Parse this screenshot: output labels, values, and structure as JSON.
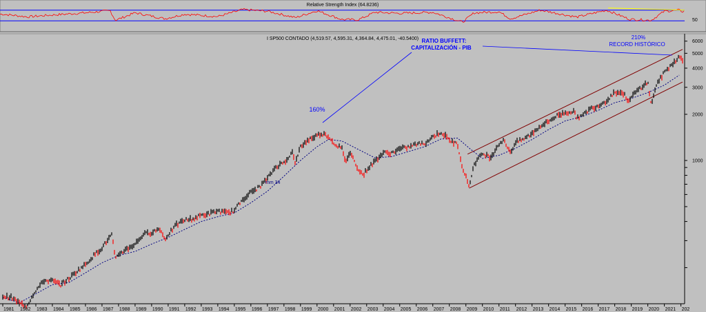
{
  "rsi_panel": {
    "title": "Relative Strength Index (64.8236)",
    "axis_label": "50",
    "upper_level": 70,
    "lower_level": 30,
    "current": 64.8236
  },
  "price_panel": {
    "title": "I SP500 CONTADO (4,519.57, 4,595.31, 4,364.84, 4,475.01, -40.5400)",
    "y_ticks": [
      "6000",
      "5000",
      "4000",
      "3000",
      "2000",
      "1000"
    ],
    "x_ticks": [
      "1981",
      "1982",
      "1983",
      "1984",
      "1985",
      "1986",
      "1987",
      "1988",
      "1989",
      "1990",
      "1991",
      "1992",
      "1993",
      "1994",
      "1995",
      "1996",
      "1997",
      "1998",
      "1999",
      "2000",
      "2001",
      "2002",
      "2003",
      "2004",
      "2005",
      "2006",
      "2007",
      "2008",
      "2009",
      "2010",
      "2011",
      "2012",
      "2013",
      "2014",
      "2015",
      "2016",
      "2017",
      "2018",
      "2019",
      "2020",
      "2021",
      "202"
    ]
  },
  "annotations": {
    "ratio_line1": "RATIO BUFFETT:",
    "ratio_line2": "CAPITALIZACIÓN - PIB",
    "pct_2000": "160%",
    "pct_2021": "210%",
    "record": "RECORD HISTÓRICO",
    "ma_label": "mm 34"
  },
  "colors": {
    "background": "#c0c0c0",
    "rsi_line": "#ff0000",
    "rsi_levels": "#0000ff",
    "rsi_trend": "#ffff00",
    "up_bar": "#000000",
    "down_bar": "#ff0000",
    "moving_average": "#000080",
    "channel": "#800000",
    "annotation": "#0000ff"
  },
  "chart_data": {
    "type": "line",
    "title": "I SP500 CONTADO (4,519.57, 4,595.31, 4,364.84, 4,475.01, -40.5400)",
    "y_scale": "log",
    "ylim": [
      120,
      6500
    ],
    "xlim": [
      1981.0,
      2022.1
    ],
    "series": [
      {
        "name": "price",
        "points": [
          [
            1981.0,
            130
          ],
          [
            1981.5,
            128
          ],
          [
            1982.0,
            118
          ],
          [
            1982.4,
            112
          ],
          [
            1982.6,
            120
          ],
          [
            1982.9,
            138
          ],
          [
            1983.5,
            165
          ],
          [
            1984.0,
            164
          ],
          [
            1984.5,
            155
          ],
          [
            1985.0,
            170
          ],
          [
            1985.5,
            190
          ],
          [
            1986.0,
            210
          ],
          [
            1986.5,
            240
          ],
          [
            1987.0,
            270
          ],
          [
            1987.6,
            330
          ],
          [
            1987.8,
            225
          ],
          [
            1988.0,
            245
          ],
          [
            1988.5,
            265
          ],
          [
            1989.0,
            285
          ],
          [
            1989.5,
            330
          ],
          [
            1990.0,
            340
          ],
          [
            1990.5,
            360
          ],
          [
            1990.8,
            305
          ],
          [
            1991.0,
            330
          ],
          [
            1991.5,
            380
          ],
          [
            1992.0,
            410
          ],
          [
            1992.5,
            415
          ],
          [
            1993.0,
            440
          ],
          [
            1993.5,
            450
          ],
          [
            1994.0,
            470
          ],
          [
            1994.5,
            455
          ],
          [
            1995.0,
            470
          ],
          [
            1995.5,
            560
          ],
          [
            1996.0,
            620
          ],
          [
            1996.5,
            670
          ],
          [
            1997.0,
            760
          ],
          [
            1997.5,
            910
          ],
          [
            1998.0,
            970
          ],
          [
            1998.5,
            1130
          ],
          [
            1998.7,
            960
          ],
          [
            1999.0,
            1230
          ],
          [
            1999.5,
            1370
          ],
          [
            2000.0,
            1460
          ],
          [
            2000.3,
            1500
          ],
          [
            2000.7,
            1440
          ],
          [
            2001.0,
            1300
          ],
          [
            2001.5,
            1200
          ],
          [
            2001.7,
            980
          ],
          [
            2002.0,
            1130
          ],
          [
            2002.5,
            880
          ],
          [
            2002.8,
            800
          ],
          [
            2003.0,
            870
          ],
          [
            2003.5,
            990
          ],
          [
            2004.0,
            1120
          ],
          [
            2004.5,
            1120
          ],
          [
            2005.0,
            1190
          ],
          [
            2005.5,
            1220
          ],
          [
            2006.0,
            1280
          ],
          [
            2006.5,
            1290
          ],
          [
            2007.0,
            1430
          ],
          [
            2007.5,
            1530
          ],
          [
            2008.0,
            1360
          ],
          [
            2008.5,
            1270
          ],
          [
            2008.8,
            900
          ],
          [
            2009.2,
            680
          ],
          [
            2009.5,
            950
          ],
          [
            2010.0,
            1110
          ],
          [
            2010.5,
            1050
          ],
          [
            2011.0,
            1290
          ],
          [
            2011.3,
            1350
          ],
          [
            2011.7,
            1130
          ],
          [
            2012.0,
            1310
          ],
          [
            2012.5,
            1380
          ],
          [
            2013.0,
            1500
          ],
          [
            2013.5,
            1680
          ],
          [
            2014.0,
            1800
          ],
          [
            2014.5,
            1960
          ],
          [
            2015.0,
            2050
          ],
          [
            2015.5,
            2090
          ],
          [
            2015.7,
            1920
          ],
          [
            2016.0,
            1940
          ],
          [
            2016.5,
            2170
          ],
          [
            2017.0,
            2280
          ],
          [
            2017.5,
            2450
          ],
          [
            2018.0,
            2800
          ],
          [
            2018.5,
            2750
          ],
          [
            2018.9,
            2400
          ],
          [
            2019.0,
            2600
          ],
          [
            2019.5,
            2950
          ],
          [
            2020.0,
            3250
          ],
          [
            2020.2,
            2300
          ],
          [
            2020.5,
            3100
          ],
          [
            2021.0,
            3750
          ],
          [
            2021.5,
            4300
          ],
          [
            2021.9,
            4750
          ],
          [
            2022.1,
            4475
          ]
        ]
      },
      {
        "name": "mm 34",
        "points": [
          [
            1981.0,
            128
          ],
          [
            1982.0,
            118
          ],
          [
            1983.0,
            135
          ],
          [
            1984.0,
            155
          ],
          [
            1985.0,
            160
          ],
          [
            1986.0,
            185
          ],
          [
            1987.0,
            215
          ],
          [
            1988.0,
            240
          ],
          [
            1989.0,
            255
          ],
          [
            1990.0,
            285
          ],
          [
            1991.0,
            315
          ],
          [
            1992.0,
            355
          ],
          [
            1993.0,
            400
          ],
          [
            1994.0,
            430
          ],
          [
            1995.0,
            455
          ],
          [
            1996.0,
            530
          ],
          [
            1997.0,
            630
          ],
          [
            1998.0,
            790
          ],
          [
            1999.0,
            1000
          ],
          [
            2000.0,
            1230
          ],
          [
            2000.7,
            1370
          ],
          [
            2001.5,
            1340
          ],
          [
            2002.5,
            1180
          ],
          [
            2003.5,
            1040
          ],
          [
            2004.5,
            1060
          ],
          [
            2005.5,
            1140
          ],
          [
            2006.5,
            1230
          ],
          [
            2007.5,
            1380
          ],
          [
            2008.5,
            1400
          ],
          [
            2009.3,
            1180
          ],
          [
            2010.0,
            1030
          ],
          [
            2011.0,
            1080
          ],
          [
            2012.0,
            1200
          ],
          [
            2013.0,
            1370
          ],
          [
            2014.0,
            1590
          ],
          [
            2015.0,
            1810
          ],
          [
            2016.0,
            1930
          ],
          [
            2017.0,
            2120
          ],
          [
            2018.0,
            2380
          ],
          [
            2019.0,
            2540
          ],
          [
            2020.0,
            2770
          ],
          [
            2021.0,
            3100
          ],
          [
            2021.9,
            3600
          ]
        ]
      }
    ],
    "channel": {
      "upper": [
        [
          2009.1,
          1100
        ],
        [
          2022.1,
          5300
        ]
      ],
      "lower": [
        [
          2009.2,
          660
        ],
        [
          2022.1,
          3250
        ]
      ]
    },
    "rsi": [
      [
        1981.0,
        55
      ],
      [
        1982.5,
        45
      ],
      [
        1984.0,
        52
      ],
      [
        1986.0,
        60
      ],
      [
        1987.5,
        68
      ],
      [
        1987.8,
        32
      ],
      [
        1989.0,
        60
      ],
      [
        1990.8,
        38
      ],
      [
        1992.0,
        55
      ],
      [
        1994.0,
        46
      ],
      [
        1995.5,
        72
      ],
      [
        1997.0,
        66
      ],
      [
        1998.7,
        42
      ],
      [
        2000.0,
        68
      ],
      [
        2001.5,
        35
      ],
      [
        2002.5,
        34
      ],
      [
        2003.5,
        62
      ],
      [
        2005.0,
        58
      ],
      [
        2007.0,
        62
      ],
      [
        2008.8,
        25
      ],
      [
        2009.5,
        60
      ],
      [
        2011.0,
        64
      ],
      [
        2011.7,
        38
      ],
      [
        2013.5,
        70
      ],
      [
        2015.7,
        44
      ],
      [
        2017.5,
        70
      ],
      [
        2018.9,
        36
      ],
      [
        2020.2,
        32
      ],
      [
        2021.0,
        66
      ],
      [
        2021.9,
        70
      ],
      [
        2022.1,
        64.8236
      ]
    ]
  }
}
